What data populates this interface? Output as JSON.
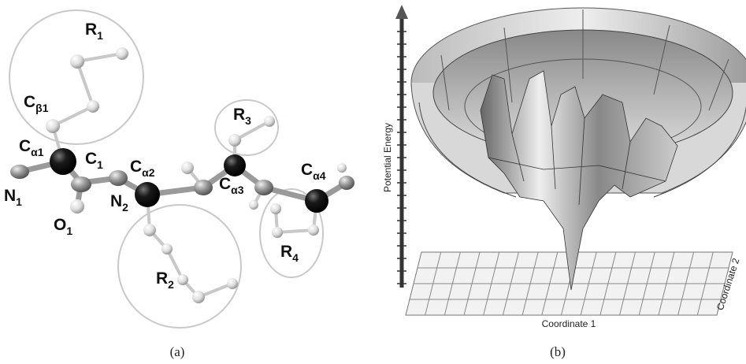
{
  "panel_a": {
    "labels": [
      {
        "main": "R",
        "sub": "1"
      },
      {
        "main": "C",
        "sub": "β1"
      },
      {
        "main": "C",
        "sub": "α1"
      },
      {
        "main": "C",
        "sub": "1"
      },
      {
        "main": "N",
        "sub": "1"
      },
      {
        "main": "O",
        "sub": "1"
      },
      {
        "main": "C",
        "sub": "α2"
      },
      {
        "main": "N",
        "sub": "2"
      },
      {
        "main": "R",
        "sub": "3"
      },
      {
        "main": "C",
        "sub": "α3"
      },
      {
        "main": "C",
        "sub": "α4"
      },
      {
        "main": "R",
        "sub": "4"
      },
      {
        "main": "R",
        "sub": "2"
      }
    ],
    "caption": "(a)"
  },
  "panel_b": {
    "y_axis": "Potential Energy",
    "x_axis": "Coordinate 1",
    "z_axis": "Coordinate 2",
    "caption": "(b)"
  }
}
